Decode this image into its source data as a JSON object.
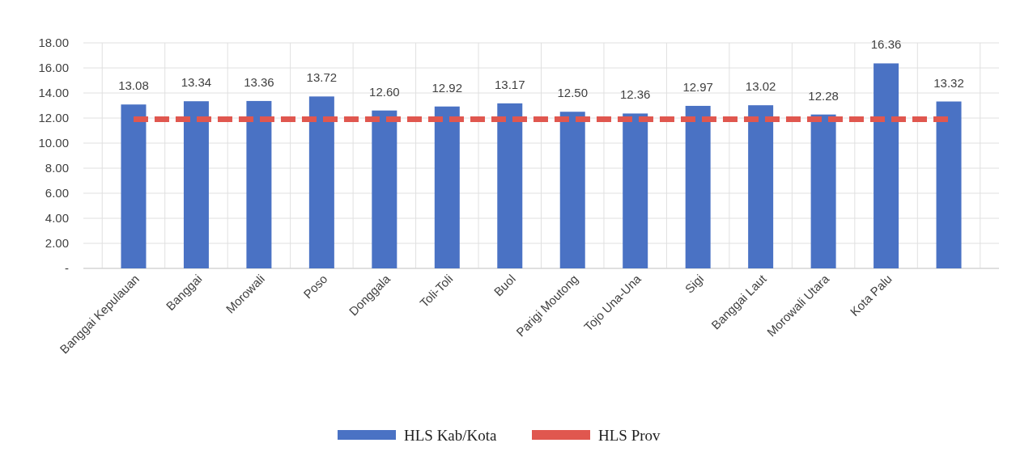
{
  "chart_data": {
    "type": "bar",
    "categories": [
      "Banggai Kepulauan",
      "Banggai",
      "Morowali",
      "Poso",
      "Donggala",
      "Toli-Toli",
      "Buol",
      "Parigi Moutong",
      "Tojo Una-Una",
      "Sigi",
      "Banggai Laut",
      "Morowali Utara",
      "Kota Palu",
      null
    ],
    "series": [
      {
        "name": "HLS Kab/Kota",
        "color": "#4a72c4",
        "values": [
          13.08,
          13.34,
          13.36,
          13.72,
          12.6,
          12.92,
          13.17,
          12.5,
          12.36,
          12.97,
          13.02,
          12.28,
          16.36,
          13.32
        ],
        "value_labels": [
          "13.08",
          "13.34",
          "13.36",
          "13.72",
          "12.60",
          "12.92",
          "13.17",
          "12.50",
          "12.36",
          "12.97",
          "13.02",
          "12.28",
          "16.36",
          "13.32"
        ]
      },
      {
        "name": "HLS Prov",
        "type": "line",
        "color": "#e0574f",
        "line_style": "dashed",
        "marker": "none",
        "values": [
          11.9,
          11.9,
          11.9,
          11.9,
          11.9,
          11.9,
          11.9,
          11.9,
          11.9,
          11.9,
          11.9,
          11.9,
          11.9,
          11.9
        ]
      }
    ],
    "ylim": [
      0,
      18
    ],
    "yticks": [
      {
        "value": 0,
        "label": "-"
      },
      {
        "value": 2,
        "label": "2.00"
      },
      {
        "value": 4,
        "label": "4.00"
      },
      {
        "value": 6,
        "label": "6.00"
      },
      {
        "value": 8,
        "label": "8.00"
      },
      {
        "value": 10,
        "label": "10.00"
      },
      {
        "value": 12,
        "label": "12.00"
      },
      {
        "value": 14,
        "label": "14.00"
      },
      {
        "value": 16,
        "label": "16.00"
      },
      {
        "value": 18,
        "label": "18.00"
      }
    ],
    "grid": true,
    "legend": "bottom"
  }
}
